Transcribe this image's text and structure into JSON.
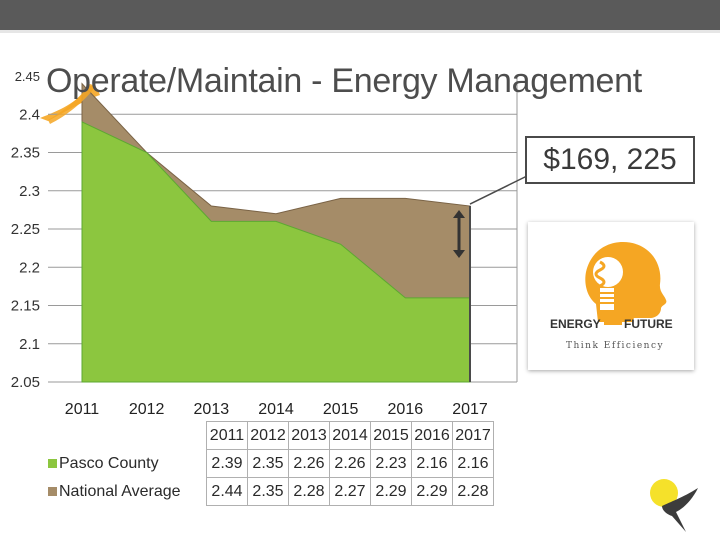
{
  "slide": {
    "title": "Operate/Maintain - Energy Management",
    "callout": "$169, 225"
  },
  "logo": {
    "left_word": "ENERGY",
    "right_word": "FUTURE",
    "tagline": "Think Efficiency"
  },
  "colors": {
    "pasco": "#8cc63f",
    "pasco_dark": "#5da832",
    "national": "#a58c68",
    "national_dark": "#7a6346",
    "gridline": "#9a9a9a",
    "accent_orange": "#f5a623",
    "topbar": "#5a5a5a"
  },
  "chart_data": {
    "type": "area",
    "title": "",
    "xlabel": "",
    "ylabel": "",
    "categories": [
      "2011",
      "2012",
      "2013",
      "2014",
      "2015",
      "2016",
      "2017"
    ],
    "series": [
      {
        "name": "Pasco County",
        "values": [
          2.39,
          2.35,
          2.26,
          2.26,
          2.23,
          2.16,
          2.16
        ]
      },
      {
        "name": "National Average",
        "values": [
          2.44,
          2.35,
          2.28,
          2.27,
          2.29,
          2.29,
          2.28
        ]
      }
    ],
    "ylim": [
      2.05,
      2.45
    ],
    "yticks": [
      "2.45",
      "2.4",
      "2.35",
      "2.3",
      "2.25",
      "2.2",
      "2.15",
      "2.1",
      "2.05"
    ],
    "grid": true,
    "legend": "data-table-bottom"
  },
  "table": {
    "header": [
      "2011",
      "2012",
      "2013",
      "2014",
      "2015",
      "2016",
      "2017"
    ],
    "rows": [
      {
        "label": "Pasco County",
        "values": [
          "2.39",
          "2.35",
          "2.26",
          "2.26",
          "2.23",
          "2.16",
          "2.16"
        ]
      },
      {
        "label": "National Average",
        "values": [
          "2.44",
          "2.35",
          "2.28",
          "2.27",
          "2.29",
          "2.29",
          "2.28"
        ]
      }
    ]
  }
}
